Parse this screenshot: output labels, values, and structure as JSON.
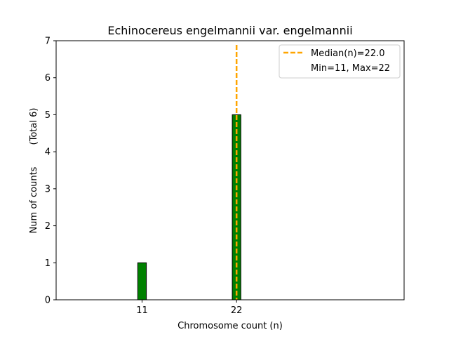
{
  "chart_data": {
    "type": "bar",
    "title": "Echinocereus engelmannii var. engelmannii",
    "xlabel": "Chromosome count (n)",
    "ylabel": "Num of counts",
    "ylabel_total": "(Total 6)",
    "xlim": [
      1,
      41.5
    ],
    "ylim": [
      0,
      7
    ],
    "yticks": [
      0,
      1,
      2,
      3,
      4,
      5,
      6,
      7
    ],
    "xticks": [
      11,
      22
    ],
    "bars": [
      {
        "x": 11,
        "value": 1
      },
      {
        "x": 22,
        "value": 5
      }
    ],
    "bar_width": 1,
    "bar_color": "#008000",
    "median": 22.0,
    "median_color": "#FFA500",
    "legend": {
      "position": "top-right",
      "median_label": "Median(n)=22.0",
      "range_label": "Min=11, Max=22"
    },
    "grid": false
  }
}
